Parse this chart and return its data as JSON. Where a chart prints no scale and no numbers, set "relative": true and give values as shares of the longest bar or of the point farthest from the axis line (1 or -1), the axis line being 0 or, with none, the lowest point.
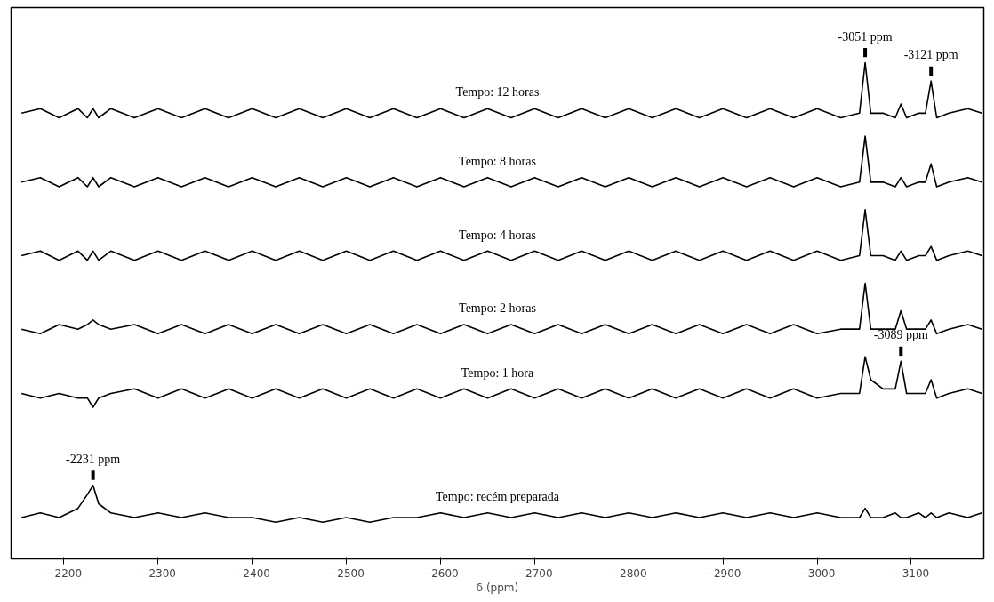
{
  "chart_data": {
    "type": "line",
    "relative": true,
    "xlabel": "δ (ppm)",
    "xlim": [
      -2144,
      -3177
    ],
    "xticks": [
      -2200,
      -2300,
      -2400,
      -2500,
      -2600,
      -2700,
      -2800,
      -2900,
      -3000,
      -3100
    ],
    "tick_labels": "x",
    "grid": false,
    "marker": "none",
    "line_style": "solid",
    "x": [
      -2155,
      -2175,
      -2195,
      -2215,
      -2225,
      -2231,
      -2237,
      -2250,
      -2275,
      -2300,
      -2325,
      -2350,
      -2375,
      -2400,
      -2425,
      -2450,
      -2475,
      -2500,
      -2525,
      -2550,
      -2575,
      -2600,
      -2625,
      -2650,
      -2675,
      -2700,
      -2725,
      -2750,
      -2775,
      -2800,
      -2825,
      -2850,
      -2875,
      -2900,
      -2925,
      -2950,
      -2975,
      -3000,
      -3025,
      -3045,
      -3051,
      -3057,
      -3070,
      -3083,
      -3089,
      -3095,
      -3108,
      -3115,
      -3121,
      -3127,
      -3140,
      -3160,
      -3175
    ],
    "series": [
      {
        "name": "Tempo: 12 horas",
        "color": "#000000",
        "values": [
          0.89,
          0.9,
          0.88,
          0.9,
          0.88,
          0.9,
          0.88,
          0.9,
          0.88,
          0.9,
          0.88,
          0.9,
          0.88,
          0.9,
          0.88,
          0.9,
          0.88,
          0.9,
          0.88,
          0.9,
          0.88,
          0.9,
          0.88,
          0.9,
          0.88,
          0.9,
          0.88,
          0.9,
          0.88,
          0.9,
          0.88,
          0.9,
          0.88,
          0.9,
          0.88,
          0.9,
          0.88,
          0.9,
          0.88,
          0.89,
          1.0,
          0.89,
          0.89,
          0.88,
          0.91,
          0.88,
          0.89,
          0.89,
          0.96,
          0.88,
          0.89,
          0.9,
          0.89
        ]
      },
      {
        "name": "Tempo: 8 horas",
        "color": "#000000",
        "values": [
          0.74,
          0.75,
          0.73,
          0.75,
          0.73,
          0.75,
          0.73,
          0.75,
          0.73,
          0.75,
          0.73,
          0.75,
          0.73,
          0.75,
          0.73,
          0.75,
          0.73,
          0.75,
          0.73,
          0.75,
          0.73,
          0.75,
          0.73,
          0.75,
          0.73,
          0.75,
          0.73,
          0.75,
          0.73,
          0.75,
          0.73,
          0.75,
          0.73,
          0.75,
          0.73,
          0.75,
          0.73,
          0.75,
          0.73,
          0.74,
          0.84,
          0.74,
          0.74,
          0.73,
          0.75,
          0.73,
          0.74,
          0.74,
          0.78,
          0.73,
          0.74,
          0.75,
          0.74
        ]
      },
      {
        "name": "Tempo: 4 horas",
        "color": "#000000",
        "values": [
          0.58,
          0.59,
          0.57,
          0.59,
          0.57,
          0.59,
          0.57,
          0.59,
          0.57,
          0.59,
          0.57,
          0.59,
          0.57,
          0.59,
          0.57,
          0.59,
          0.57,
          0.59,
          0.57,
          0.59,
          0.57,
          0.59,
          0.57,
          0.59,
          0.57,
          0.59,
          0.57,
          0.59,
          0.57,
          0.59,
          0.57,
          0.59,
          0.57,
          0.59,
          0.57,
          0.59,
          0.57,
          0.59,
          0.57,
          0.58,
          0.68,
          0.58,
          0.58,
          0.57,
          0.59,
          0.57,
          0.58,
          0.58,
          0.6,
          0.57,
          0.58,
          0.59,
          0.58
        ]
      },
      {
        "name": "Tempo: 2 horas",
        "color": "#000000",
        "values": [
          0.42,
          0.41,
          0.43,
          0.42,
          0.43,
          0.44,
          0.43,
          0.42,
          0.43,
          0.41,
          0.43,
          0.41,
          0.43,
          0.41,
          0.43,
          0.41,
          0.43,
          0.41,
          0.43,
          0.41,
          0.43,
          0.41,
          0.43,
          0.41,
          0.43,
          0.41,
          0.43,
          0.41,
          0.43,
          0.41,
          0.43,
          0.41,
          0.43,
          0.41,
          0.43,
          0.41,
          0.43,
          0.41,
          0.42,
          0.42,
          0.52,
          0.42,
          0.42,
          0.42,
          0.46,
          0.42,
          0.42,
          0.42,
          0.44,
          0.41,
          0.42,
          0.43,
          0.42
        ]
      },
      {
        "name": "Tempo: 1 hora",
        "color": "#000000",
        "values": [
          0.28,
          0.27,
          0.28,
          0.27,
          0.27,
          0.25,
          0.27,
          0.28,
          0.29,
          0.27,
          0.29,
          0.27,
          0.29,
          0.27,
          0.29,
          0.27,
          0.29,
          0.27,
          0.29,
          0.27,
          0.29,
          0.27,
          0.29,
          0.27,
          0.29,
          0.27,
          0.29,
          0.27,
          0.29,
          0.27,
          0.29,
          0.27,
          0.29,
          0.27,
          0.29,
          0.27,
          0.29,
          0.27,
          0.28,
          0.28,
          0.36,
          0.31,
          0.29,
          0.29,
          0.35,
          0.28,
          0.28,
          0.28,
          0.31,
          0.27,
          0.28,
          0.29,
          0.28
        ]
      },
      {
        "name": "Tempo: recém preparada",
        "color": "#000000",
        "values": [
          0.01,
          0.02,
          0.01,
          0.03,
          0.06,
          0.08,
          0.04,
          0.02,
          0.01,
          0.02,
          0.01,
          0.02,
          0.01,
          0.01,
          0.0,
          0.01,
          0.0,
          0.01,
          0.0,
          0.01,
          0.01,
          0.02,
          0.01,
          0.02,
          0.01,
          0.02,
          0.01,
          0.02,
          0.01,
          0.02,
          0.01,
          0.02,
          0.01,
          0.02,
          0.01,
          0.02,
          0.01,
          0.02,
          0.01,
          0.01,
          0.03,
          0.01,
          0.01,
          0.02,
          0.01,
          0.01,
          0.02,
          0.01,
          0.02,
          0.01,
          0.02,
          0.01,
          0.02
        ]
      }
    ],
    "annotations": [
      {
        "text": "-3051 ppm",
        "x": -3051,
        "y": 1.0
      },
      {
        "text": "-3121 ppm",
        "x": -3121,
        "y": 0.96
      },
      {
        "text": "-3089 ppm",
        "x": -3089,
        "y": 0.35
      },
      {
        "text": "-2231 ppm",
        "x": -2231,
        "y": 0.08
      }
    ]
  }
}
